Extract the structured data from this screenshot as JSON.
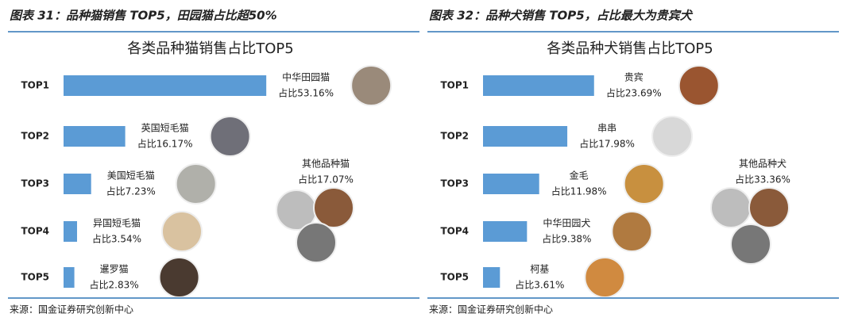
{
  "chart_data": [
    {
      "type": "bar",
      "orientation": "horizontal",
      "caption": "图表 31：品种猫销售 TOP5，田园猫占比超50%",
      "title": "各类品种猫销售占比TOP5",
      "categories": [
        "TOP1",
        "TOP2",
        "TOP3",
        "TOP4",
        "TOP5"
      ],
      "bar_labels": [
        "中华田园猫",
        "英国短毛猫",
        "美国短毛猫",
        "异国短毛猫",
        "暹罗猫"
      ],
      "values": [
        53.16,
        16.17,
        7.23,
        3.54,
        2.83
      ],
      "value_labels": [
        "占比53.16%",
        "占比16.17%",
        "占比7.23%",
        "占比3.54%",
        "占比2.83%"
      ],
      "color": "#5b9bd5",
      "annotation": {
        "label": "其他品种猫",
        "value_label": "占比17.07%"
      },
      "source": "来源：国金证券研究创新中心"
    },
    {
      "type": "bar",
      "orientation": "horizontal",
      "caption": "图表 32：品种犬销售 TOP5，占比最大为贵宾犬",
      "title": "各类品种犬销售占比TOP5",
      "categories": [
        "TOP1",
        "TOP2",
        "TOP3",
        "TOP4",
        "TOP5"
      ],
      "bar_labels": [
        "贵宾",
        "串串",
        "金毛",
        "中华田园犬",
        "柯基"
      ],
      "values": [
        23.69,
        17.98,
        11.98,
        9.38,
        3.61
      ],
      "value_labels": [
        "占比23.69%",
        "占比17.98%",
        "占比11.98%",
        "占比9.38%",
        "占比3.61%"
      ],
      "color": "#5b9bd5",
      "annotation": {
        "label": "其他品种犬",
        "value_label": "占比33.36%"
      },
      "source": "来源：国金证券研究创新中心"
    }
  ]
}
